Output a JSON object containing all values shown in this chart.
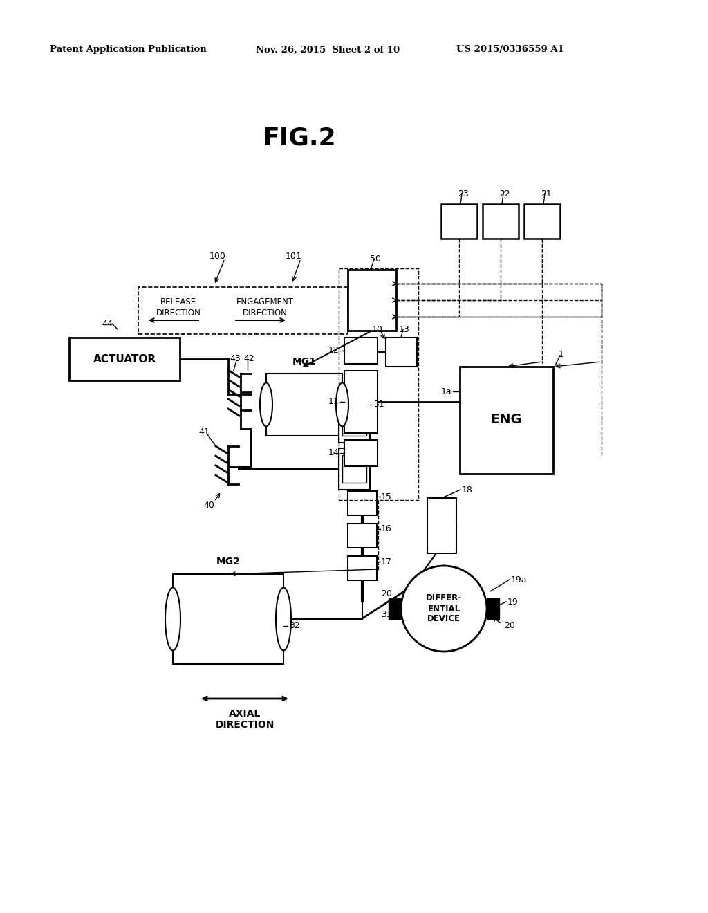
{
  "bg_color": "#ffffff",
  "header_left": "Patent Application Publication",
  "header_mid": "Nov. 26, 2015  Sheet 2 of 10",
  "header_right": "US 2015/0336559 A1",
  "fig_label": "FIG.2"
}
